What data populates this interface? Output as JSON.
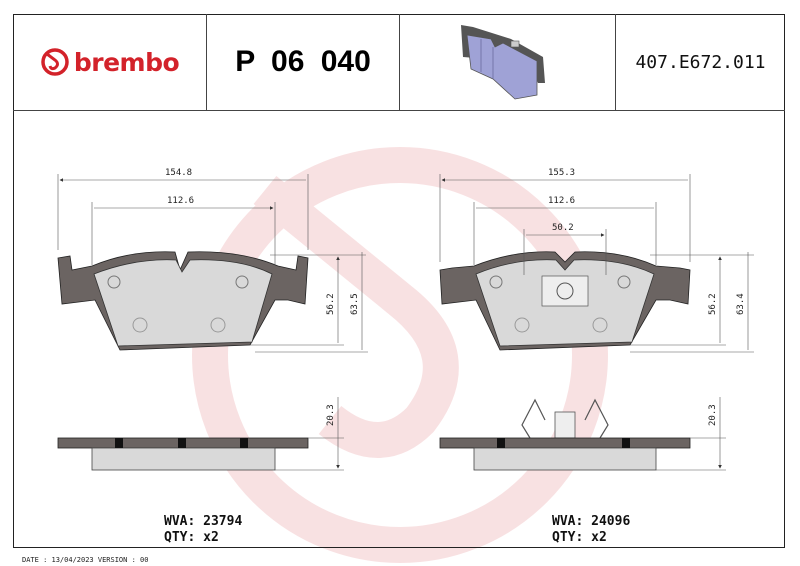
{
  "header": {
    "brand": "brembo",
    "part_number": "P 06 040",
    "code": "407.E672.011"
  },
  "colors": {
    "brand": "#d3222a",
    "watermark": "#f4c9cb",
    "backing_plate": "#6b6462",
    "friction": "#d9d9d9",
    "product_image": "#9fa2d6"
  },
  "left": {
    "dim_width_total": "154.8",
    "dim_width_pad": "112.6",
    "dim_height_pad": "56.2",
    "dim_height_total": "63.5",
    "dim_thickness": "20.3",
    "wva": "WVA: 23794",
    "qty": "QTY: x2"
  },
  "right": {
    "dim_width_total": "155.3",
    "dim_width_pad": "112.6",
    "dim_clip": "50.2",
    "dim_height_pad": "56.2",
    "dim_height_total": "63.4",
    "dim_thickness": "20.3",
    "wva": "WVA: 24096",
    "qty": "QTY: x2"
  },
  "footer": "DATE : 13/04/2023 VERSION : 00"
}
